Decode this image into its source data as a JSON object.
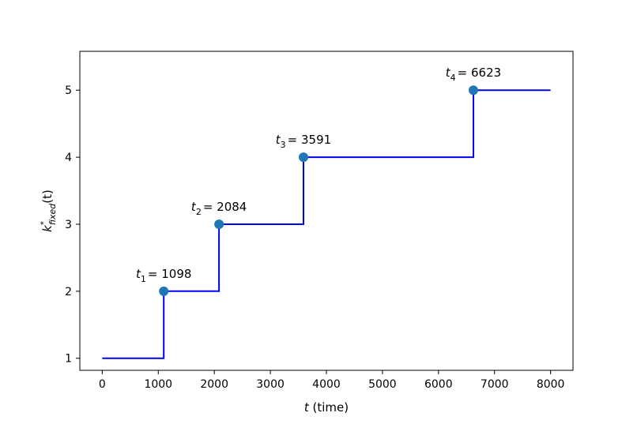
{
  "chart_data": {
    "type": "line",
    "title": "",
    "xlabel_var": "t",
    "xlabel_rest": " (time)",
    "ylabel_var": "k",
    "ylabel_sup": "*",
    "ylabel_sub": "fixed",
    "ylabel_rest": "(t)",
    "xlim": [
      -400,
      8400
    ],
    "ylim": [
      0.82,
      5.58
    ],
    "xticks": [
      0,
      1000,
      2000,
      3000,
      4000,
      5000,
      6000,
      7000,
      8000
    ],
    "yticks": [
      1,
      2,
      3,
      4,
      5
    ],
    "grid": false,
    "step_line": {
      "color": "#0000ff",
      "x": [
        0,
        1098,
        1098,
        2084,
        2084,
        3591,
        3591,
        6623,
        6623,
        8000
      ],
      "y": [
        1,
        1,
        2,
        2,
        3,
        3,
        4,
        4,
        5,
        5
      ]
    },
    "change_points": {
      "color": "#1f77b4",
      "points": [
        {
          "var": "t",
          "sub": "1",
          "label": "= 1098",
          "x": 1098,
          "y": 2
        },
        {
          "var": "t",
          "sub": "2",
          "label": "= 2084",
          "x": 2084,
          "y": 3
        },
        {
          "var": "t",
          "sub": "3",
          "label": "= 3591",
          "x": 3591,
          "y": 4
        },
        {
          "var": "t",
          "sub": "4",
          "label": "= 6623",
          "x": 6623,
          "y": 5
        }
      ]
    }
  }
}
